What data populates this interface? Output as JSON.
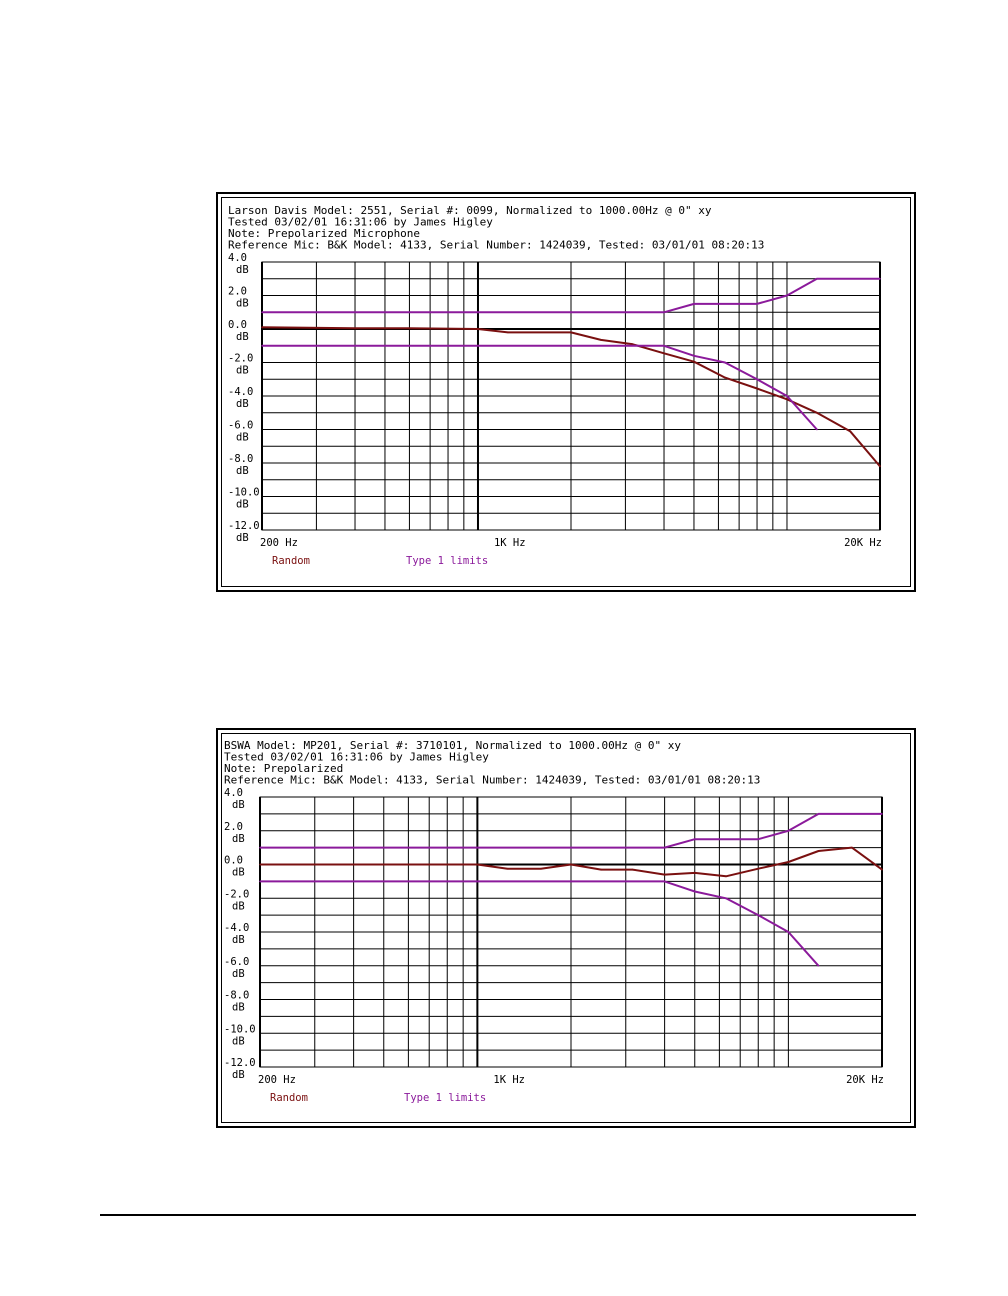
{
  "colors": {
    "random": "#7a1010",
    "limits": "#8b1a9b",
    "grid": "#000000"
  },
  "charts": [
    {
      "header": [
        "Larson Davis Model: 2551, Serial #: 0099, Normalized to 1000.00Hz @ 0\" xy",
        "Tested 03/02/01 16:31:06 by James Higley",
        "Note: Prepolarized Microphone",
        "Reference Mic: B&K Model: 4133, Serial Number: 1424039, Tested: 03/01/01 08:20:13"
      ],
      "y_ticks": [
        {
          "val": "4.0",
          "unit": "dB"
        },
        {
          "val": "2.0",
          "unit": "dB"
        },
        {
          "val": "0.0",
          "unit": "dB"
        },
        {
          "val": "-2.0",
          "unit": "dB"
        },
        {
          "val": "-4.0",
          "unit": "dB"
        },
        {
          "val": "-6.0",
          "unit": "dB"
        },
        {
          "val": "-8.0",
          "unit": "dB"
        },
        {
          "val": "-10.0",
          "unit": "dB"
        },
        {
          "val": "-12.0",
          "unit": "dB"
        }
      ],
      "x_tick_labels": [
        "200 Hz",
        "1K Hz",
        "20K Hz"
      ],
      "legend": [
        "Random",
        "Type 1 limits"
      ]
    },
    {
      "header": [
        "BSWA Model: MP201, Serial #: 3710101, Normalized to 1000.00Hz @ 0\" xy",
        "Tested 03/02/01 16:31:06 by James Higley",
        "Note: Prepolarized",
        "Reference Mic: B&K Model: 4133, Serial Number: 1424039, Tested: 03/01/01 08:20:13"
      ],
      "y_ticks": [
        {
          "val": "4.0",
          "unit": "dB"
        },
        {
          "val": "2.0",
          "unit": "dB"
        },
        {
          "val": "0.0",
          "unit": "dB"
        },
        {
          "val": "-2.0",
          "unit": "dB"
        },
        {
          "val": "-4.0",
          "unit": "dB"
        },
        {
          "val": "-6.0",
          "unit": "dB"
        },
        {
          "val": "-8.0",
          "unit": "dB"
        },
        {
          "val": "-10.0",
          "unit": "dB"
        },
        {
          "val": "-12.0",
          "unit": "dB"
        }
      ],
      "x_tick_labels": [
        "200 Hz",
        "1K Hz",
        "20K Hz"
      ],
      "legend": [
        "Random",
        "Type 1 limits"
      ]
    }
  ],
  "chart_data": [
    {
      "type": "line",
      "x_scale": "log",
      "xlim": [
        200,
        20000
      ],
      "ylim": [
        -12,
        4
      ],
      "grid": true,
      "legend_position": "bottom",
      "series": [
        {
          "name": "Random",
          "x": [
            200,
            400,
            600,
            1000,
            1250,
            2000,
            2500,
            3150,
            4000,
            5000,
            6300,
            8000,
            10000,
            12500,
            16000,
            20000
          ],
          "y": [
            0.1,
            0.05,
            0.05,
            0.0,
            -0.2,
            -0.2,
            -0.65,
            -0.9,
            -1.45,
            -1.95,
            -2.9,
            -3.55,
            -4.2,
            -5.0,
            -6.1,
            -8.2
          ]
        },
        {
          "name": "Type 1 limits",
          "x": [
            200,
            4000,
            5000,
            8000,
            10000,
            12500,
            20000
          ],
          "y": [
            1.0,
            1.0,
            1.5,
            1.5,
            2.0,
            3.0,
            3.0
          ]
        },
        {
          "name": "Type 1 limits",
          "x": [
            200,
            4000,
            5000,
            6300,
            8000,
            10000,
            12500
          ],
          "y": [
            -1.0,
            -1.0,
            -1.6,
            -2.0,
            -3.0,
            -4.0,
            -6.0
          ]
        }
      ]
    },
    {
      "type": "line",
      "x_scale": "log",
      "xlim": [
        200,
        20000
      ],
      "ylim": [
        -12,
        4
      ],
      "grid": true,
      "legend_position": "bottom",
      "series": [
        {
          "name": "Random",
          "x": [
            200,
            400,
            1000,
            1250,
            1600,
            2000,
            2500,
            3150,
            4000,
            5000,
            6300,
            8000,
            10000,
            12500,
            16000,
            20000
          ],
          "y": [
            0.0,
            0.0,
            0.0,
            -0.25,
            -0.25,
            0.0,
            -0.3,
            -0.3,
            -0.6,
            -0.5,
            -0.7,
            -0.25,
            0.15,
            0.8,
            1.0,
            -0.3
          ]
        },
        {
          "name": "Type 1 limits",
          "x": [
            200,
            4000,
            5000,
            8000,
            10000,
            12500,
            20000
          ],
          "y": [
            1.0,
            1.0,
            1.5,
            1.5,
            2.0,
            3.0,
            3.0
          ]
        },
        {
          "name": "Type 1 limits",
          "x": [
            200,
            4000,
            5000,
            6300,
            8000,
            10000,
            12500
          ],
          "y": [
            -1.0,
            -1.0,
            -1.6,
            -2.0,
            -3.0,
            -4.0,
            -6.0
          ]
        }
      ]
    }
  ]
}
